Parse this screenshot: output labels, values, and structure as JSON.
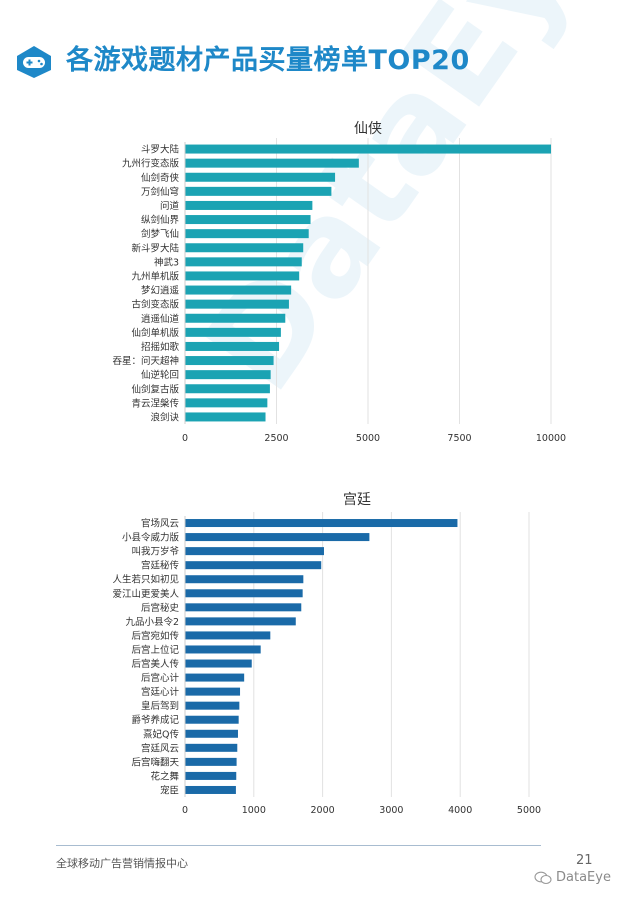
{
  "page": {
    "title": "各游戏题材产品买量榜单TOP20",
    "footer_left": "全球移动广告营销情报中心",
    "page_number": "21",
    "brand": "DataEye",
    "watermark": "DataEye",
    "accent_color": "#1e88c8",
    "header_icon": "gamepad-icon",
    "brand_icon": "wechat-icon"
  },
  "chart_data": [
    {
      "type": "bar",
      "orientation": "horizontal",
      "title": "仙侠",
      "color": "#1ba3b3",
      "grid": true,
      "xlim": [
        0,
        10000
      ],
      "xticks": [
        0,
        2500,
        5000,
        7500,
        10000
      ],
      "categories": [
        "斗罗大陆",
        "九州行变态版",
        "仙剑奇侠",
        "万剑仙穹",
        "问道",
        "纵剑仙界",
        "剑梦飞仙",
        "新斗罗大陆",
        "神武3",
        "九州单机版",
        "梦幻逍遥",
        "古剑变态版",
        "逍遥仙道",
        "仙剑单机版",
        "招摇如歌",
        "吞星：问天超神",
        "仙逆轮回",
        "仙剑复古版",
        "青云涅槃传",
        "浪剑诀"
      ],
      "values": [
        10000,
        4750,
        4100,
        4000,
        3480,
        3430,
        3380,
        3230,
        3190,
        3120,
        2900,
        2840,
        2740,
        2620,
        2570,
        2420,
        2340,
        2320,
        2250,
        2200
      ]
    },
    {
      "type": "bar",
      "orientation": "horizontal",
      "title": "宫廷",
      "color": "#1a6aa8",
      "grid": true,
      "xlim": [
        0,
        5000
      ],
      "xticks": [
        0,
        1000,
        2000,
        3000,
        4000,
        5000
      ],
      "categories": [
        "官场风云",
        "小县令威力版",
        "叫我万岁爷",
        "宫廷秘传",
        "人生若只如初见",
        "爱江山更爱美人",
        "后宫秘史",
        "九品小县令2",
        "后宫宛如传",
        "后宫上位记",
        "后宫美人传",
        "后宫心计",
        "宫廷心计",
        "皇后驾到",
        "爵爷养成记",
        "熹妃Q传",
        "宫廷风云",
        "后宫嗨翻天",
        "花之舞",
        "宠臣"
      ],
      "values": [
        3960,
        2680,
        2020,
        1980,
        1720,
        1710,
        1690,
        1610,
        1240,
        1100,
        970,
        860,
        800,
        790,
        780,
        770,
        760,
        750,
        745,
        740
      ]
    }
  ]
}
